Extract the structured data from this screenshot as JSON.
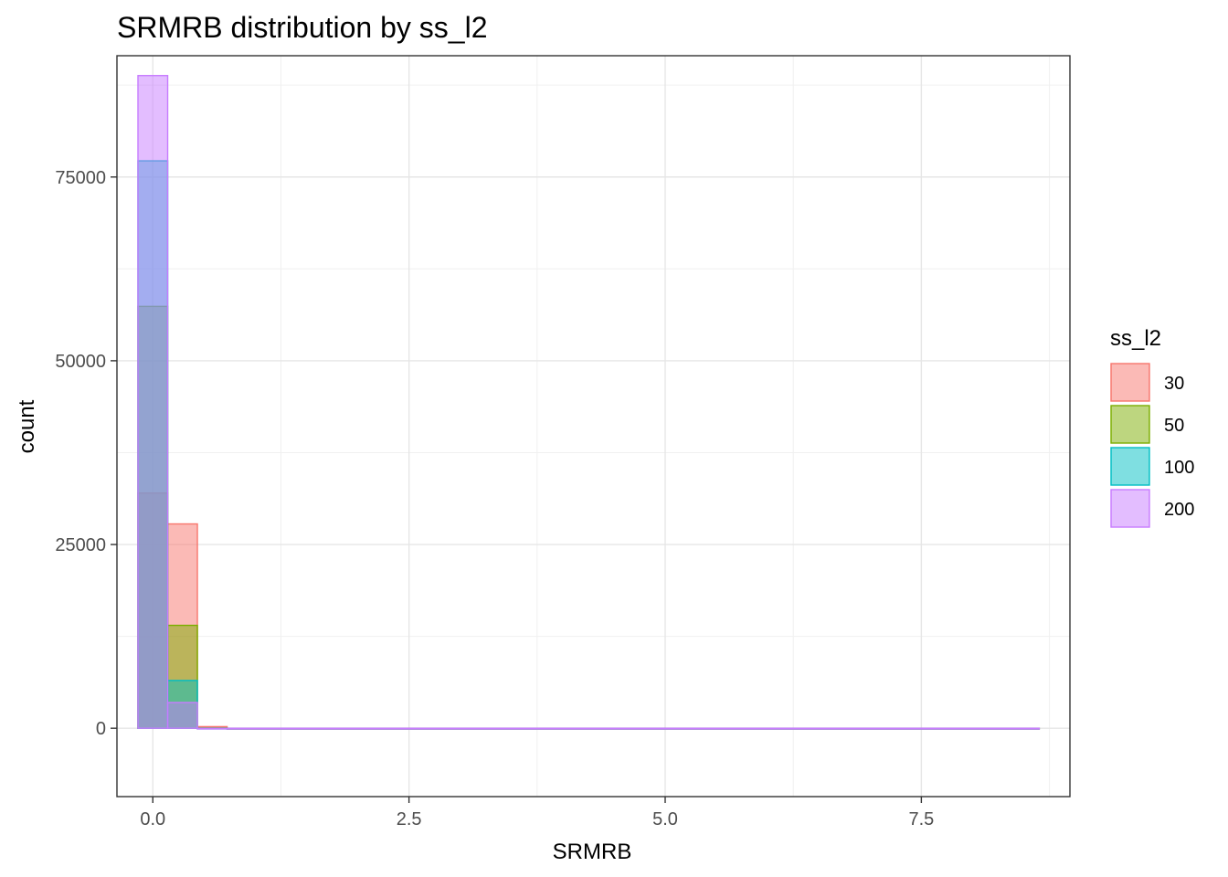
{
  "chart_data": {
    "type": "bar",
    "title": "SRMRB distribution by ss_l2",
    "xlabel": "SRMRB",
    "ylabel": "count",
    "xlim": [
      -0.35,
      8.95
    ],
    "ylim": [
      -9300,
      91500
    ],
    "x_ticks": [
      0.0,
      2.5,
      5.0,
      7.5
    ],
    "x_tick_labels": [
      "0.0",
      "2.5",
      "5.0",
      "7.5"
    ],
    "y_ticks": [
      0,
      25000,
      50000,
      75000
    ],
    "y_tick_labels": [
      "0",
      "25000",
      "50000",
      "75000"
    ],
    "grid": true,
    "legend": {
      "title": "ss_l2",
      "position": "right"
    },
    "bin_edges": [
      -0.145,
      0.145,
      0.435,
      0.725,
      8.65
    ],
    "series": [
      {
        "name": "30",
        "color": "#F8766D",
        "values": [
          32000,
          27800,
          220,
          0
        ]
      },
      {
        "name": "50",
        "color": "#7CAE00",
        "values": [
          57400,
          14000,
          60,
          0
        ]
      },
      {
        "name": "100",
        "color": "#00BFC4",
        "values": [
          77200,
          6500,
          10,
          0
        ]
      },
      {
        "name": "200",
        "color": "#C77CFF",
        "values": [
          88800,
          3500,
          5,
          0
        ]
      }
    ]
  }
}
